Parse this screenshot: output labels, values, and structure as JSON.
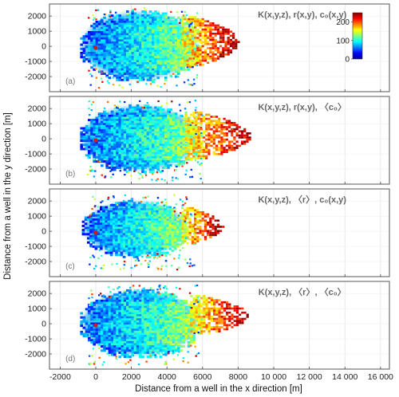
{
  "chart_data": {
    "type": "heatmap",
    "xlabel": "Distance from a well in the x direction [m]",
    "ylabel": "Distance from a well in the y direction [m]",
    "xlim": [
      -2600,
      16500
    ],
    "ylim": [
      -3000,
      2800
    ],
    "x_ticks": [
      -2000,
      0,
      2000,
      4000,
      6000,
      8000,
      10000,
      12000,
      14000,
      16000
    ],
    "x_tick_labels": [
      "-2000",
      "0",
      "2000",
      "4000",
      "6000",
      "8000",
      "10 000",
      "12 000",
      "14 000",
      "16 000"
    ],
    "y_ticks": [
      2000,
      1000,
      0,
      -1000,
      -2000
    ],
    "y_tick_labels": [
      "2000",
      "1000",
      "0",
      "-1000",
      "-2000"
    ],
    "grid": true,
    "colorbar": {
      "range": [
        0,
        250
      ],
      "ticks": [
        0,
        100,
        200
      ],
      "tick_labels": [
        "0",
        "100",
        "200"
      ],
      "colormap": "jet",
      "placement": "top-right of panel (a)"
    },
    "well_marker": {
      "x": 0,
      "y": -100,
      "color": "#d11a1a"
    },
    "panels": [
      {
        "tag": "(a)",
        "title": "K(x,y,z), r(x,y), c₀(x,y)",
        "main_blob": {
          "x_range": [
            -700,
            5600
          ],
          "y_range": [
            -2100,
            2200
          ]
        },
        "high_value_fringe": {
          "x_range": [
            4800,
            8000
          ],
          "y_range": [
            -1300,
            2000
          ]
        },
        "scatter_extent": {
          "x_range": [
            -500,
            5800
          ],
          "y_range": [
            -2700,
            2600
          ]
        }
      },
      {
        "tag": "(b)",
        "title": "K(x,y,z), r(x,y), 〈c₀〉",
        "main_blob": {
          "x_range": [
            -700,
            5600
          ],
          "y_range": [
            -2000,
            2100
          ]
        },
        "high_value_fringe": {
          "x_range": [
            5000,
            8700
          ],
          "y_range": [
            -1300,
            1800
          ]
        },
        "scatter_extent": {
          "x_range": [
            -500,
            6000
          ],
          "y_range": [
            -2700,
            2600
          ]
        }
      },
      {
        "tag": "(c)",
        "title": "K(x,y,z), 〈r〉, c₀(x,y)",
        "main_blob": {
          "x_range": [
            -600,
            5000
          ],
          "y_range": [
            -1500,
            1900
          ]
        },
        "high_value_fringe": {
          "x_range": [
            4800,
            7100
          ],
          "y_range": [
            -800,
            1600
          ]
        },
        "scatter_extent": {
          "x_range": [
            -400,
            5600
          ],
          "y_range": [
            -2500,
            2500
          ]
        }
      },
      {
        "tag": "(d)",
        "title": "K(x,y,z), 〈r〉, 〈c₀〉",
        "main_blob": {
          "x_range": [
            -700,
            5600
          ],
          "y_range": [
            -2000,
            2100
          ]
        },
        "high_value_fringe": {
          "x_range": [
            5300,
            8500
          ],
          "y_range": [
            -700,
            1900
          ]
        },
        "scatter_extent": {
          "x_range": [
            -500,
            5800
          ],
          "y_range": [
            -2700,
            2600
          ]
        }
      }
    ]
  }
}
